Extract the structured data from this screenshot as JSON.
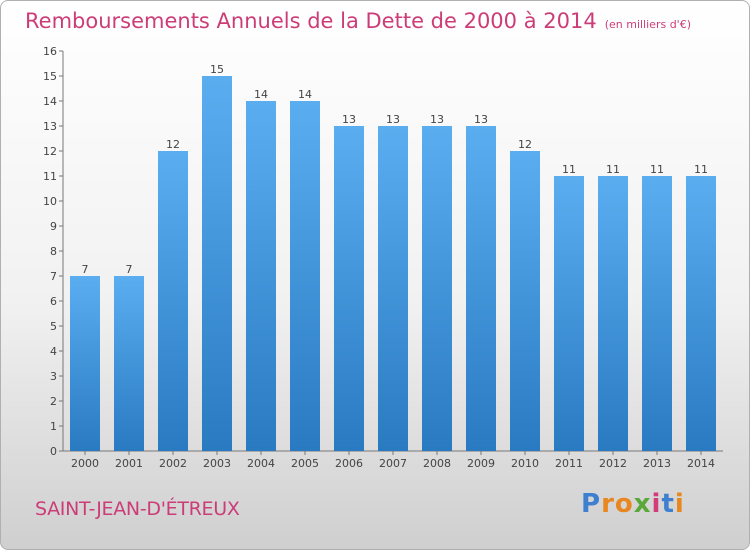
{
  "chart_data": {
    "type": "bar",
    "title": "Remboursements Annuels de la Dette de 2000 à 2014",
    "title_unit": "(en milliers d'€)",
    "categories": [
      "2000",
      "2001",
      "2002",
      "2003",
      "2004",
      "2005",
      "2006",
      "2007",
      "2008",
      "2009",
      "2010",
      "2011",
      "2012",
      "2013",
      "2014"
    ],
    "values": [
      7,
      7,
      12,
      15,
      14,
      14,
      13,
      13,
      13,
      13,
      12,
      11,
      11,
      11,
      11
    ],
    "data_labels": [
      "7",
      "7",
      "12",
      "15",
      "14",
      "14",
      "13",
      "13",
      "13",
      "13",
      "12",
      "11",
      "11",
      "11",
      "11"
    ],
    "yticks": [
      "0",
      "1",
      "2",
      "3",
      "4",
      "5",
      "6",
      "7",
      "8",
      "9",
      "10",
      "11",
      "12",
      "13",
      "14",
      "15",
      "16"
    ],
    "ylim": [
      0,
      16
    ],
    "xlabel": "",
    "ylabel": "",
    "grid": false,
    "colors": {
      "bar_light": "#5aaef0",
      "bar_dark": "#2a7ac2",
      "label": "#444444",
      "title": "#cc3d78"
    }
  },
  "footer": {
    "commune": "SAINT-JEAN-D'ÉTREUX",
    "logo_letters": [
      "P",
      "r",
      "o",
      "x",
      "i",
      "t",
      "i"
    ],
    "logo_colors": [
      "#3f7fd0",
      "#e8861f",
      "#e8861f",
      "#5aa838",
      "#d33b7a",
      "#3f7fd0",
      "#e8861f"
    ]
  }
}
